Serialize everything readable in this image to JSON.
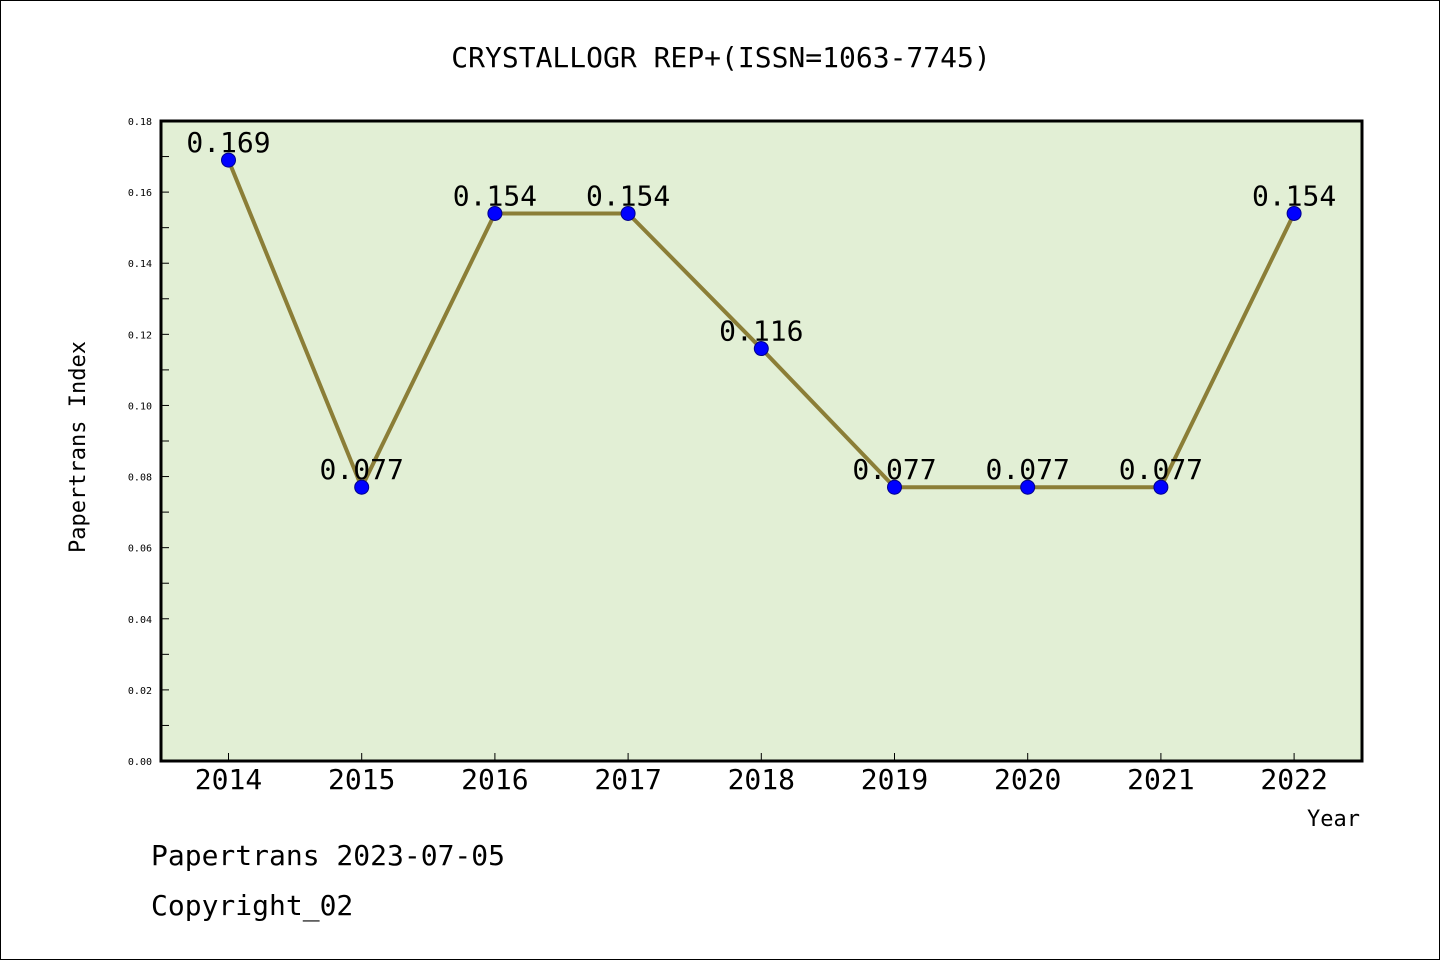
{
  "chart_data": {
    "type": "line",
    "title": "CRYSTALLOGR REP+(ISSN=1063-7745)",
    "xlabel": "Year",
    "ylabel": "Papertrans Index",
    "categories": [
      "2014",
      "2015",
      "2016",
      "2017",
      "2018",
      "2019",
      "2020",
      "2021",
      "2022"
    ],
    "series": [
      {
        "values": [
          0.169,
          0.077,
          0.154,
          0.154,
          0.116,
          0.077,
          0.077,
          0.077,
          0.154
        ],
        "labels": [
          "0.169",
          "0.077",
          "0.154",
          "0.154",
          "0.116",
          "0.077",
          "0.077",
          "0.077",
          "0.154"
        ]
      }
    ],
    "ylim": [
      0,
      0.18
    ],
    "yticks": [
      "0.00",
      "0.02",
      "0.04",
      "0.06",
      "0.08",
      "0.10",
      "0.12",
      "0.14",
      "0.16",
      "0.18"
    ],
    "grid": false,
    "colors": {
      "plot_background": "#e2efd5",
      "line": "#8b7e37",
      "marker": "#0000ff"
    }
  },
  "footer": {
    "line1": "Papertrans 2023-07-05",
    "line2": "Copyright_02"
  }
}
